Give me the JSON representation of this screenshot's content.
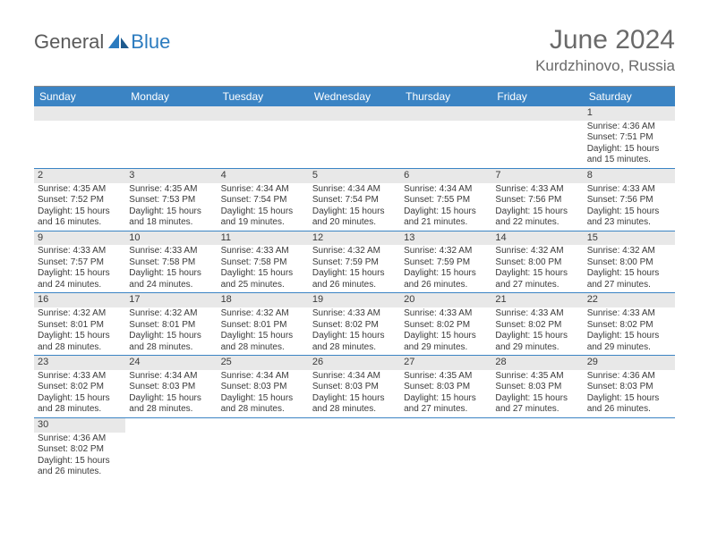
{
  "branding": {
    "logo_text_1": "General",
    "logo_text_2": "Blue",
    "logo_color_1": "#5a5a5a",
    "logo_color_2": "#2b7bbf"
  },
  "title": {
    "month_year": "June 2024",
    "location": "Kurdzhinovo, Russia"
  },
  "colors": {
    "header_bg": "#3b84c4",
    "header_text": "#ffffff",
    "daynum_bg": "#e8e8e8",
    "row_border": "#3b84c4",
    "text": "#3a3a3a"
  },
  "weekdays": [
    "Sunday",
    "Monday",
    "Tuesday",
    "Wednesday",
    "Thursday",
    "Friday",
    "Saturday"
  ],
  "weeks": [
    [
      null,
      null,
      null,
      null,
      null,
      null,
      {
        "n": "1",
        "sr": "Sunrise: 4:36 AM",
        "ss": "Sunset: 7:51 PM",
        "d1": "Daylight: 15 hours",
        "d2": "and 15 minutes."
      }
    ],
    [
      {
        "n": "2",
        "sr": "Sunrise: 4:35 AM",
        "ss": "Sunset: 7:52 PM",
        "d1": "Daylight: 15 hours",
        "d2": "and 16 minutes."
      },
      {
        "n": "3",
        "sr": "Sunrise: 4:35 AM",
        "ss": "Sunset: 7:53 PM",
        "d1": "Daylight: 15 hours",
        "d2": "and 18 minutes."
      },
      {
        "n": "4",
        "sr": "Sunrise: 4:34 AM",
        "ss": "Sunset: 7:54 PM",
        "d1": "Daylight: 15 hours",
        "d2": "and 19 minutes."
      },
      {
        "n": "5",
        "sr": "Sunrise: 4:34 AM",
        "ss": "Sunset: 7:54 PM",
        "d1": "Daylight: 15 hours",
        "d2": "and 20 minutes."
      },
      {
        "n": "6",
        "sr": "Sunrise: 4:34 AM",
        "ss": "Sunset: 7:55 PM",
        "d1": "Daylight: 15 hours",
        "d2": "and 21 minutes."
      },
      {
        "n": "7",
        "sr": "Sunrise: 4:33 AM",
        "ss": "Sunset: 7:56 PM",
        "d1": "Daylight: 15 hours",
        "d2": "and 22 minutes."
      },
      {
        "n": "8",
        "sr": "Sunrise: 4:33 AM",
        "ss": "Sunset: 7:56 PM",
        "d1": "Daylight: 15 hours",
        "d2": "and 23 minutes."
      }
    ],
    [
      {
        "n": "9",
        "sr": "Sunrise: 4:33 AM",
        "ss": "Sunset: 7:57 PM",
        "d1": "Daylight: 15 hours",
        "d2": "and 24 minutes."
      },
      {
        "n": "10",
        "sr": "Sunrise: 4:33 AM",
        "ss": "Sunset: 7:58 PM",
        "d1": "Daylight: 15 hours",
        "d2": "and 24 minutes."
      },
      {
        "n": "11",
        "sr": "Sunrise: 4:33 AM",
        "ss": "Sunset: 7:58 PM",
        "d1": "Daylight: 15 hours",
        "d2": "and 25 minutes."
      },
      {
        "n": "12",
        "sr": "Sunrise: 4:32 AM",
        "ss": "Sunset: 7:59 PM",
        "d1": "Daylight: 15 hours",
        "d2": "and 26 minutes."
      },
      {
        "n": "13",
        "sr": "Sunrise: 4:32 AM",
        "ss": "Sunset: 7:59 PM",
        "d1": "Daylight: 15 hours",
        "d2": "and 26 minutes."
      },
      {
        "n": "14",
        "sr": "Sunrise: 4:32 AM",
        "ss": "Sunset: 8:00 PM",
        "d1": "Daylight: 15 hours",
        "d2": "and 27 minutes."
      },
      {
        "n": "15",
        "sr": "Sunrise: 4:32 AM",
        "ss": "Sunset: 8:00 PM",
        "d1": "Daylight: 15 hours",
        "d2": "and 27 minutes."
      }
    ],
    [
      {
        "n": "16",
        "sr": "Sunrise: 4:32 AM",
        "ss": "Sunset: 8:01 PM",
        "d1": "Daylight: 15 hours",
        "d2": "and 28 minutes."
      },
      {
        "n": "17",
        "sr": "Sunrise: 4:32 AM",
        "ss": "Sunset: 8:01 PM",
        "d1": "Daylight: 15 hours",
        "d2": "and 28 minutes."
      },
      {
        "n": "18",
        "sr": "Sunrise: 4:32 AM",
        "ss": "Sunset: 8:01 PM",
        "d1": "Daylight: 15 hours",
        "d2": "and 28 minutes."
      },
      {
        "n": "19",
        "sr": "Sunrise: 4:33 AM",
        "ss": "Sunset: 8:02 PM",
        "d1": "Daylight: 15 hours",
        "d2": "and 28 minutes."
      },
      {
        "n": "20",
        "sr": "Sunrise: 4:33 AM",
        "ss": "Sunset: 8:02 PM",
        "d1": "Daylight: 15 hours",
        "d2": "and 29 minutes."
      },
      {
        "n": "21",
        "sr": "Sunrise: 4:33 AM",
        "ss": "Sunset: 8:02 PM",
        "d1": "Daylight: 15 hours",
        "d2": "and 29 minutes."
      },
      {
        "n": "22",
        "sr": "Sunrise: 4:33 AM",
        "ss": "Sunset: 8:02 PM",
        "d1": "Daylight: 15 hours",
        "d2": "and 29 minutes."
      }
    ],
    [
      {
        "n": "23",
        "sr": "Sunrise: 4:33 AM",
        "ss": "Sunset: 8:02 PM",
        "d1": "Daylight: 15 hours",
        "d2": "and 28 minutes."
      },
      {
        "n": "24",
        "sr": "Sunrise: 4:34 AM",
        "ss": "Sunset: 8:03 PM",
        "d1": "Daylight: 15 hours",
        "d2": "and 28 minutes."
      },
      {
        "n": "25",
        "sr": "Sunrise: 4:34 AM",
        "ss": "Sunset: 8:03 PM",
        "d1": "Daylight: 15 hours",
        "d2": "and 28 minutes."
      },
      {
        "n": "26",
        "sr": "Sunrise: 4:34 AM",
        "ss": "Sunset: 8:03 PM",
        "d1": "Daylight: 15 hours",
        "d2": "and 28 minutes."
      },
      {
        "n": "27",
        "sr": "Sunrise: 4:35 AM",
        "ss": "Sunset: 8:03 PM",
        "d1": "Daylight: 15 hours",
        "d2": "and 27 minutes."
      },
      {
        "n": "28",
        "sr": "Sunrise: 4:35 AM",
        "ss": "Sunset: 8:03 PM",
        "d1": "Daylight: 15 hours",
        "d2": "and 27 minutes."
      },
      {
        "n": "29",
        "sr": "Sunrise: 4:36 AM",
        "ss": "Sunset: 8:03 PM",
        "d1": "Daylight: 15 hours",
        "d2": "and 26 minutes."
      }
    ],
    [
      {
        "n": "30",
        "sr": "Sunrise: 4:36 AM",
        "ss": "Sunset: 8:02 PM",
        "d1": "Daylight: 15 hours",
        "d2": "and 26 minutes."
      },
      null,
      null,
      null,
      null,
      null,
      null
    ]
  ]
}
